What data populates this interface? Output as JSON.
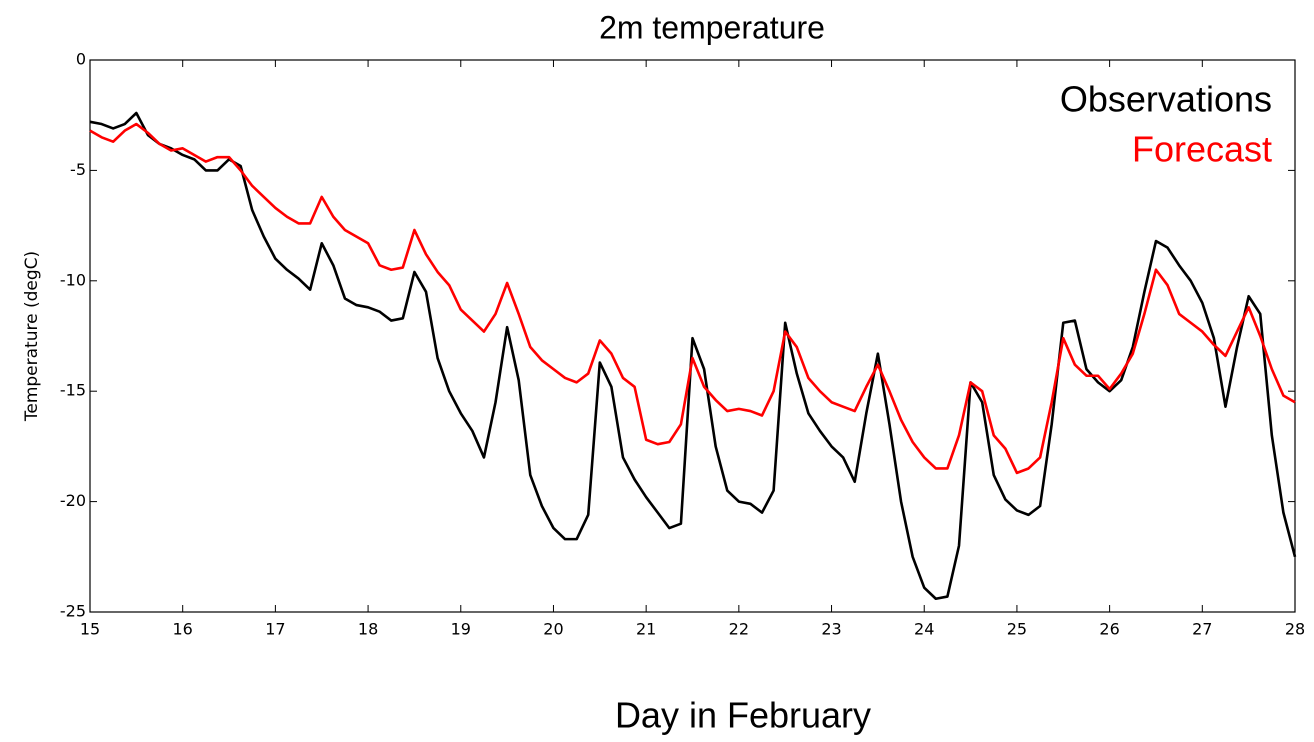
{
  "chart_data": {
    "type": "line",
    "title": "2m temperature",
    "x_label": "Day in February",
    "y_label": "Temperature (degC)",
    "x": [
      15,
      15.125,
      15.25,
      15.375,
      15.5,
      15.625,
      15.75,
      15.875,
      16,
      16.125,
      16.25,
      16.375,
      16.5,
      16.625,
      16.75,
      16.875,
      17,
      17.125,
      17.25,
      17.375,
      17.5,
      17.625,
      17.75,
      17.875,
      18,
      18.125,
      18.25,
      18.375,
      18.5,
      18.625,
      18.75,
      18.875,
      19,
      19.125,
      19.25,
      19.375,
      19.5,
      19.625,
      19.75,
      19.875,
      20,
      20.125,
      20.25,
      20.375,
      20.5,
      20.625,
      20.75,
      20.875,
      21,
      21.125,
      21.25,
      21.375,
      21.5,
      21.625,
      21.75,
      21.875,
      22,
      22.125,
      22.25,
      22.375,
      22.5,
      22.625,
      22.75,
      22.875,
      23,
      23.125,
      23.25,
      23.375,
      23.5,
      23.625,
      23.75,
      23.875,
      24,
      24.125,
      24.25,
      24.375,
      24.5,
      24.625,
      24.75,
      24.875,
      25,
      25.125,
      25.25,
      25.375,
      25.5,
      25.625,
      25.75,
      25.875,
      26,
      26.125,
      26.25,
      26.375,
      26.5,
      26.625,
      26.75,
      26.875,
      27,
      27.125,
      27.25,
      27.375,
      27.5,
      27.625,
      27.75,
      27.875,
      28
    ],
    "series": [
      {
        "name": "Observations",
        "color": "#000000",
        "values": [
          -2.8,
          -2.9,
          -3.1,
          -2.9,
          -2.4,
          -3.4,
          -3.8,
          -4.0,
          -4.3,
          -4.5,
          -5.0,
          -5.0,
          -4.5,
          -4.8,
          -6.8,
          -8.0,
          -9.0,
          -9.5,
          -9.9,
          -10.4,
          -8.3,
          -9.3,
          -10.8,
          -11.1,
          -11.2,
          -11.4,
          -11.8,
          -11.7,
          -9.6,
          -10.5,
          -13.5,
          -15.0,
          -16.0,
          -16.8,
          -18.0,
          -15.5,
          -12.1,
          -14.5,
          -18.8,
          -20.2,
          -21.2,
          -21.7,
          -21.7,
          -20.6,
          -13.7,
          -14.8,
          -18.0,
          -19.0,
          -19.8,
          -20.5,
          -21.2,
          -21.0,
          -12.6,
          -14.0,
          -17.5,
          -19.5,
          -20.0,
          -20.1,
          -20.5,
          -19.5,
          -11.9,
          -14.2,
          -16.0,
          -16.8,
          -17.5,
          -18.0,
          -19.1,
          -16.0,
          -13.3,
          -16.5,
          -20.0,
          -22.5,
          -23.9,
          -24.4,
          -24.3,
          -22.0,
          -14.6,
          -15.5,
          -18.8,
          -19.9,
          -20.4,
          -20.6,
          -20.2,
          -16.5,
          -11.9,
          -11.8,
          -14.0,
          -14.6,
          -15.0,
          -14.5,
          -13.0,
          -10.5,
          -8.2,
          -8.5,
          -9.3,
          -10.0,
          -11.0,
          -12.6,
          -15.7,
          -13.0,
          -10.7,
          -11.5,
          -17.0,
          -20.5,
          -22.5
        ]
      },
      {
        "name": "Forecast",
        "color": "#ff0000",
        "values": [
          -3.2,
          -3.5,
          -3.7,
          -3.2,
          -2.9,
          -3.3,
          -3.8,
          -4.1,
          -4.0,
          -4.3,
          -4.6,
          -4.4,
          -4.4,
          -5.0,
          -5.7,
          -6.2,
          -6.7,
          -7.1,
          -7.4,
          -7.4,
          -6.2,
          -7.1,
          -7.7,
          -8.0,
          -8.3,
          -9.3,
          -9.5,
          -9.4,
          -7.7,
          -8.8,
          -9.6,
          -10.2,
          -11.3,
          -11.8,
          -12.3,
          -11.5,
          -10.1,
          -11.5,
          -13.0,
          -13.6,
          -14.0,
          -14.4,
          -14.6,
          -14.2,
          -12.7,
          -13.3,
          -14.4,
          -14.8,
          -17.2,
          -17.4,
          -17.3,
          -16.5,
          -13.5,
          -14.8,
          -15.4,
          -15.9,
          -15.8,
          -15.9,
          -16.1,
          -15.0,
          -12.3,
          -13.0,
          -14.4,
          -15.0,
          -15.5,
          -15.7,
          -15.9,
          -14.8,
          -13.8,
          -15.0,
          -16.3,
          -17.3,
          -18.0,
          -18.5,
          -18.5,
          -17.0,
          -14.6,
          -15.0,
          -17.0,
          -17.6,
          -18.7,
          -18.5,
          -18.0,
          -15.5,
          -12.6,
          -13.8,
          -14.3,
          -14.3,
          -14.9,
          -14.2,
          -13.3,
          -11.5,
          -9.5,
          -10.2,
          -11.5,
          -11.9,
          -12.3,
          -12.9,
          -13.4,
          -12.3,
          -11.2,
          -12.5,
          -14.0,
          -15.2,
          -15.5
        ]
      }
    ],
    "xlim": [
      15,
      28
    ],
    "xticks": [
      15,
      16,
      17,
      18,
      19,
      20,
      21,
      22,
      23,
      24,
      25,
      26,
      27,
      28
    ],
    "ylim": [
      -25,
      0
    ],
    "yticks": [
      -25,
      -20,
      -15,
      -10,
      -5,
      0
    ],
    "legend": "upper right",
    "grid": false
  }
}
